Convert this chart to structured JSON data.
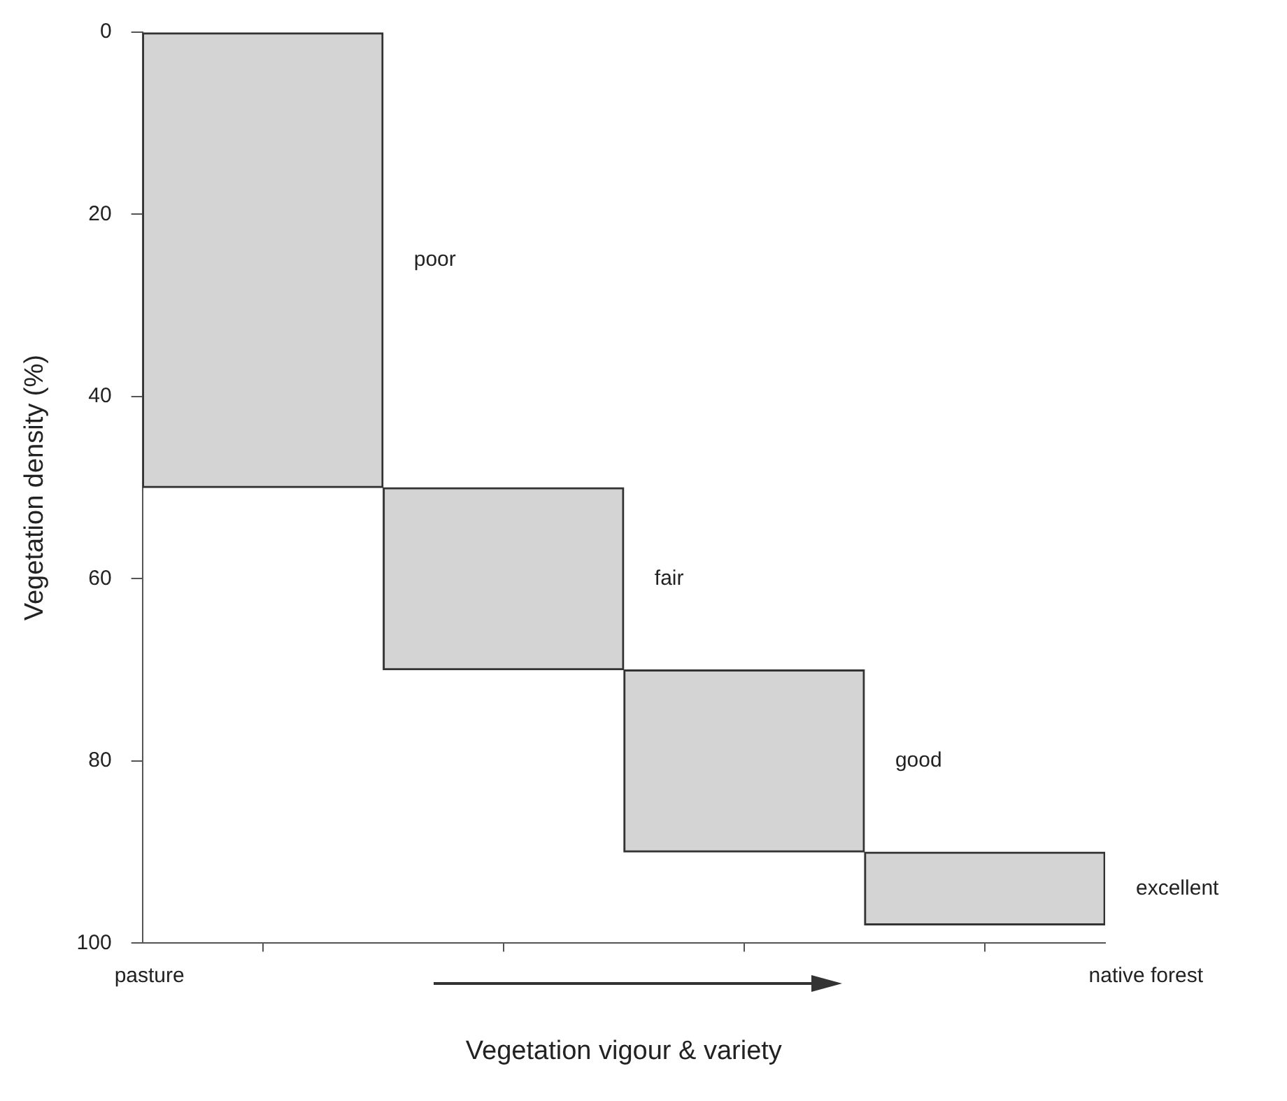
{
  "chart_data": {
    "type": "bar",
    "xlabel": "Vegetation vigour & variety",
    "ylabel": "Vegetation density (%)",
    "categories": [
      null,
      null,
      null,
      null
    ],
    "base": [
      0,
      50,
      70,
      90
    ],
    "values": [
      50,
      20,
      20,
      8
    ],
    "color": "#d4d4d4",
    "ylim": [
      100,
      0
    ],
    "yticks": [
      0,
      20,
      40,
      60,
      80,
      100
    ],
    "tick_labels": "y",
    "grid": false,
    "legend": false,
    "annotations": [
      "pasture",
      "native forest",
      "poor",
      "fair",
      "good",
      "excellent"
    ]
  }
}
